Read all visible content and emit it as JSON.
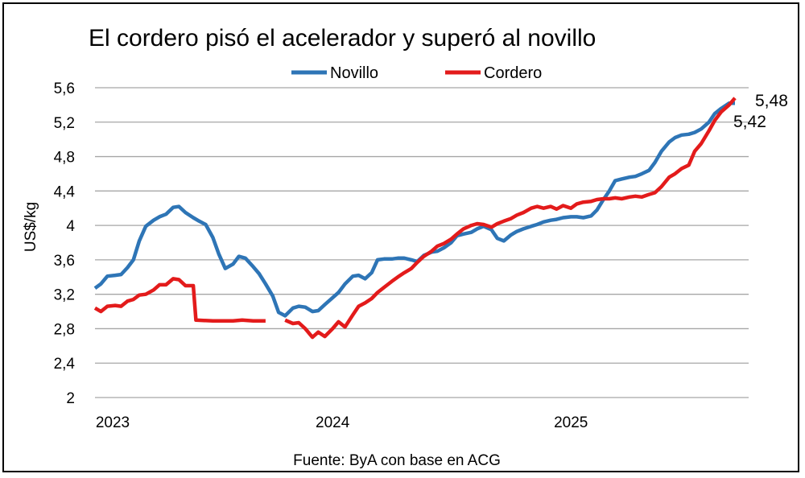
{
  "chart_data": {
    "type": "line",
    "title": "El cordero pisó el acelerador y superó al novillo",
    "ylabel": "US$/kg",
    "xlabel": "",
    "source": "Fuente: ByA con base en ACG",
    "ylim": [
      2,
      5.6
    ],
    "yticks": [
      "2",
      "2,4",
      "2,8",
      "3,2",
      "3,6",
      "4",
      "4,4",
      "4,8",
      "5,2",
      "5,6"
    ],
    "ytick_values": [
      2,
      2.4,
      2.8,
      3.2,
      3.6,
      4,
      4.4,
      4.8,
      5.2,
      5.6
    ],
    "xlim": [
      "2023-01-01",
      "2025-10-01"
    ],
    "xticks": [
      "2023",
      "2024",
      "2025"
    ],
    "xtick_dates": [
      "2023-01-01",
      "2024-01-01",
      "2025-01-01"
    ],
    "grid": "horizontal",
    "legend": "top-center",
    "end_labels": [
      "5,48",
      "5,42"
    ],
    "series": [
      {
        "name": "Novillo",
        "color": "#2E75B6",
        "points": [
          [
            "2023-01-01",
            3.27
          ],
          [
            "2023-01-10",
            3.32
          ],
          [
            "2023-01-20",
            3.41
          ],
          [
            "2023-02-01",
            3.42
          ],
          [
            "2023-02-10",
            3.43
          ],
          [
            "2023-02-20",
            3.51
          ],
          [
            "2023-03-01",
            3.6
          ],
          [
            "2023-03-10",
            3.82
          ],
          [
            "2023-03-20",
            3.99
          ],
          [
            "2023-04-01",
            4.06
          ],
          [
            "2023-04-10",
            4.1
          ],
          [
            "2023-04-20",
            4.13
          ],
          [
            "2023-05-01",
            4.21
          ],
          [
            "2023-05-10",
            4.22
          ],
          [
            "2023-05-20",
            4.15
          ],
          [
            "2023-06-01",
            4.09
          ],
          [
            "2023-06-10",
            4.05
          ],
          [
            "2023-06-20",
            4.01
          ],
          [
            "2023-07-01",
            3.86
          ],
          [
            "2023-07-10",
            3.67
          ],
          [
            "2023-07-20",
            3.5
          ],
          [
            "2023-08-01",
            3.55
          ],
          [
            "2023-08-10",
            3.64
          ],
          [
            "2023-08-20",
            3.62
          ],
          [
            "2023-09-01",
            3.52
          ],
          [
            "2023-09-10",
            3.44
          ],
          [
            "2023-09-20",
            3.32
          ],
          [
            "2023-10-01",
            3.18
          ],
          [
            "2023-10-10",
            2.99
          ],
          [
            "2023-10-20",
            2.95
          ],
          [
            "2023-11-01",
            3.04
          ],
          [
            "2023-11-10",
            3.06
          ],
          [
            "2023-11-20",
            3.05
          ],
          [
            "2023-12-01",
            3.0
          ],
          [
            "2023-12-10",
            3.01
          ],
          [
            "2023-12-20",
            3.08
          ],
          [
            "2024-01-01",
            3.16
          ],
          [
            "2024-01-10",
            3.22
          ],
          [
            "2024-01-20",
            3.32
          ],
          [
            "2024-02-01",
            3.41
          ],
          [
            "2024-02-10",
            3.42
          ],
          [
            "2024-02-20",
            3.38
          ],
          [
            "2024-03-01",
            3.45
          ],
          [
            "2024-03-10",
            3.6
          ],
          [
            "2024-03-20",
            3.61
          ],
          [
            "2024-04-01",
            3.61
          ],
          [
            "2024-04-10",
            3.62
          ],
          [
            "2024-04-20",
            3.62
          ],
          [
            "2024-05-01",
            3.6
          ],
          [
            "2024-05-10",
            3.58
          ],
          [
            "2024-05-20",
            3.65
          ],
          [
            "2024-06-01",
            3.69
          ],
          [
            "2024-06-10",
            3.7
          ],
          [
            "2024-06-20",
            3.74
          ],
          [
            "2024-07-01",
            3.8
          ],
          [
            "2024-07-10",
            3.88
          ],
          [
            "2024-07-20",
            3.9
          ],
          [
            "2024-08-01",
            3.92
          ],
          [
            "2024-08-10",
            3.96
          ],
          [
            "2024-08-20",
            3.99
          ],
          [
            "2024-09-01",
            3.95
          ],
          [
            "2024-09-10",
            3.85
          ],
          [
            "2024-09-20",
            3.82
          ],
          [
            "2024-10-01",
            3.89
          ],
          [
            "2024-10-10",
            3.93
          ],
          [
            "2024-10-20",
            3.96
          ],
          [
            "2024-11-01",
            3.99
          ],
          [
            "2024-11-10",
            4.01
          ],
          [
            "2024-11-20",
            4.04
          ],
          [
            "2024-12-01",
            4.06
          ],
          [
            "2024-12-10",
            4.07
          ],
          [
            "2024-12-20",
            4.09
          ],
          [
            "2025-01-01",
            4.1
          ],
          [
            "2025-01-10",
            4.1
          ],
          [
            "2025-01-20",
            4.09
          ],
          [
            "2025-02-01",
            4.11
          ],
          [
            "2025-02-10",
            4.18
          ],
          [
            "2025-02-20",
            4.3
          ],
          [
            "2025-03-01",
            4.4
          ],
          [
            "2025-03-10",
            4.52
          ],
          [
            "2025-03-20",
            4.54
          ],
          [
            "2025-04-01",
            4.56
          ],
          [
            "2025-04-10",
            4.57
          ],
          [
            "2025-04-20",
            4.6
          ],
          [
            "2025-05-01",
            4.64
          ],
          [
            "2025-05-10",
            4.73
          ],
          [
            "2025-05-20",
            4.86
          ],
          [
            "2025-06-01",
            4.97
          ],
          [
            "2025-06-10",
            5.02
          ],
          [
            "2025-06-20",
            5.05
          ],
          [
            "2025-07-01",
            5.06
          ],
          [
            "2025-07-10",
            5.08
          ],
          [
            "2025-07-20",
            5.12
          ],
          [
            "2025-08-01",
            5.2
          ],
          [
            "2025-08-10",
            5.3
          ],
          [
            "2025-08-20",
            5.36
          ],
          [
            "2025-09-01",
            5.42
          ],
          [
            "2025-09-10",
            5.42
          ]
        ]
      },
      {
        "name": "Cordero",
        "color": "#E31B1B",
        "segments": [
          [
            [
              "2023-01-01",
              3.04
            ],
            [
              "2023-01-10",
              3.0
            ],
            [
              "2023-01-20",
              3.06
            ],
            [
              "2023-02-01",
              3.07
            ],
            [
              "2023-02-10",
              3.06
            ],
            [
              "2023-02-20",
              3.12
            ],
            [
              "2023-03-01",
              3.14
            ],
            [
              "2023-03-10",
              3.19
            ],
            [
              "2023-03-20",
              3.2
            ],
            [
              "2023-04-01",
              3.25
            ],
            [
              "2023-04-10",
              3.31
            ],
            [
              "2023-04-20",
              3.31
            ],
            [
              "2023-05-01",
              3.38
            ],
            [
              "2023-05-10",
              3.37
            ],
            [
              "2023-05-20",
              3.3
            ],
            [
              "2023-06-01",
              3.3
            ],
            [
              "2023-06-05",
              2.9
            ],
            [
              "2023-07-01",
              2.89
            ],
            [
              "2023-08-01",
              2.89
            ],
            [
              "2023-08-15",
              2.9
            ],
            [
              "2023-09-01",
              2.89
            ],
            [
              "2023-09-20",
              2.89
            ]
          ],
          [
            [
              "2023-10-20",
              2.9
            ],
            [
              "2023-11-01",
              2.86
            ],
            [
              "2023-11-10",
              2.87
            ],
            [
              "2023-11-20",
              2.8
            ],
            [
              "2023-12-01",
              2.7
            ],
            [
              "2023-12-10",
              2.76
            ],
            [
              "2023-12-20",
              2.71
            ],
            [
              "2024-01-01",
              2.8
            ],
            [
              "2024-01-10",
              2.88
            ],
            [
              "2024-01-20",
              2.82
            ],
            [
              "2024-02-01",
              2.96
            ],
            [
              "2024-02-10",
              3.06
            ],
            [
              "2024-02-20",
              3.1
            ],
            [
              "2024-03-01",
              3.15
            ],
            [
              "2024-03-10",
              3.22
            ],
            [
              "2024-03-20",
              3.28
            ],
            [
              "2024-04-01",
              3.35
            ],
            [
              "2024-04-10",
              3.4
            ],
            [
              "2024-04-20",
              3.45
            ],
            [
              "2024-05-01",
              3.5
            ],
            [
              "2024-05-10",
              3.57
            ],
            [
              "2024-05-20",
              3.64
            ],
            [
              "2024-06-01",
              3.7
            ],
            [
              "2024-06-10",
              3.76
            ],
            [
              "2024-06-20",
              3.79
            ],
            [
              "2024-07-01",
              3.84
            ],
            [
              "2024-07-10",
              3.9
            ],
            [
              "2024-07-20",
              3.96
            ],
            [
              "2024-08-01",
              4.0
            ],
            [
              "2024-08-10",
              4.02
            ],
            [
              "2024-08-20",
              4.01
            ],
            [
              "2024-09-01",
              3.98
            ],
            [
              "2024-09-10",
              4.02
            ],
            [
              "2024-09-20",
              4.05
            ],
            [
              "2024-10-01",
              4.08
            ],
            [
              "2024-10-10",
              4.12
            ],
            [
              "2024-10-20",
              4.15
            ],
            [
              "2024-11-01",
              4.2
            ],
            [
              "2024-11-10",
              4.22
            ],
            [
              "2024-11-20",
              4.2
            ],
            [
              "2024-12-01",
              4.22
            ],
            [
              "2024-12-10",
              4.19
            ],
            [
              "2024-12-20",
              4.23
            ],
            [
              "2025-01-01",
              4.2
            ],
            [
              "2025-01-10",
              4.25
            ],
            [
              "2025-01-20",
              4.27
            ],
            [
              "2025-02-01",
              4.28
            ],
            [
              "2025-02-10",
              4.3
            ],
            [
              "2025-02-20",
              4.31
            ],
            [
              "2025-03-01",
              4.31
            ],
            [
              "2025-03-10",
              4.32
            ],
            [
              "2025-03-20",
              4.31
            ],
            [
              "2025-04-01",
              4.33
            ],
            [
              "2025-04-10",
              4.34
            ],
            [
              "2025-04-20",
              4.33
            ],
            [
              "2025-05-01",
              4.36
            ],
            [
              "2025-05-10",
              4.38
            ],
            [
              "2025-05-20",
              4.45
            ],
            [
              "2025-06-01",
              4.56
            ],
            [
              "2025-06-10",
              4.6
            ],
            [
              "2025-06-20",
              4.66
            ],
            [
              "2025-07-01",
              4.7
            ],
            [
              "2025-07-10",
              4.86
            ],
            [
              "2025-07-20",
              4.95
            ],
            [
              "2025-08-01",
              5.1
            ],
            [
              "2025-08-10",
              5.22
            ],
            [
              "2025-08-20",
              5.32
            ],
            [
              "2025-09-01",
              5.4
            ],
            [
              "2025-09-10",
              5.48
            ]
          ]
        ]
      }
    ]
  }
}
